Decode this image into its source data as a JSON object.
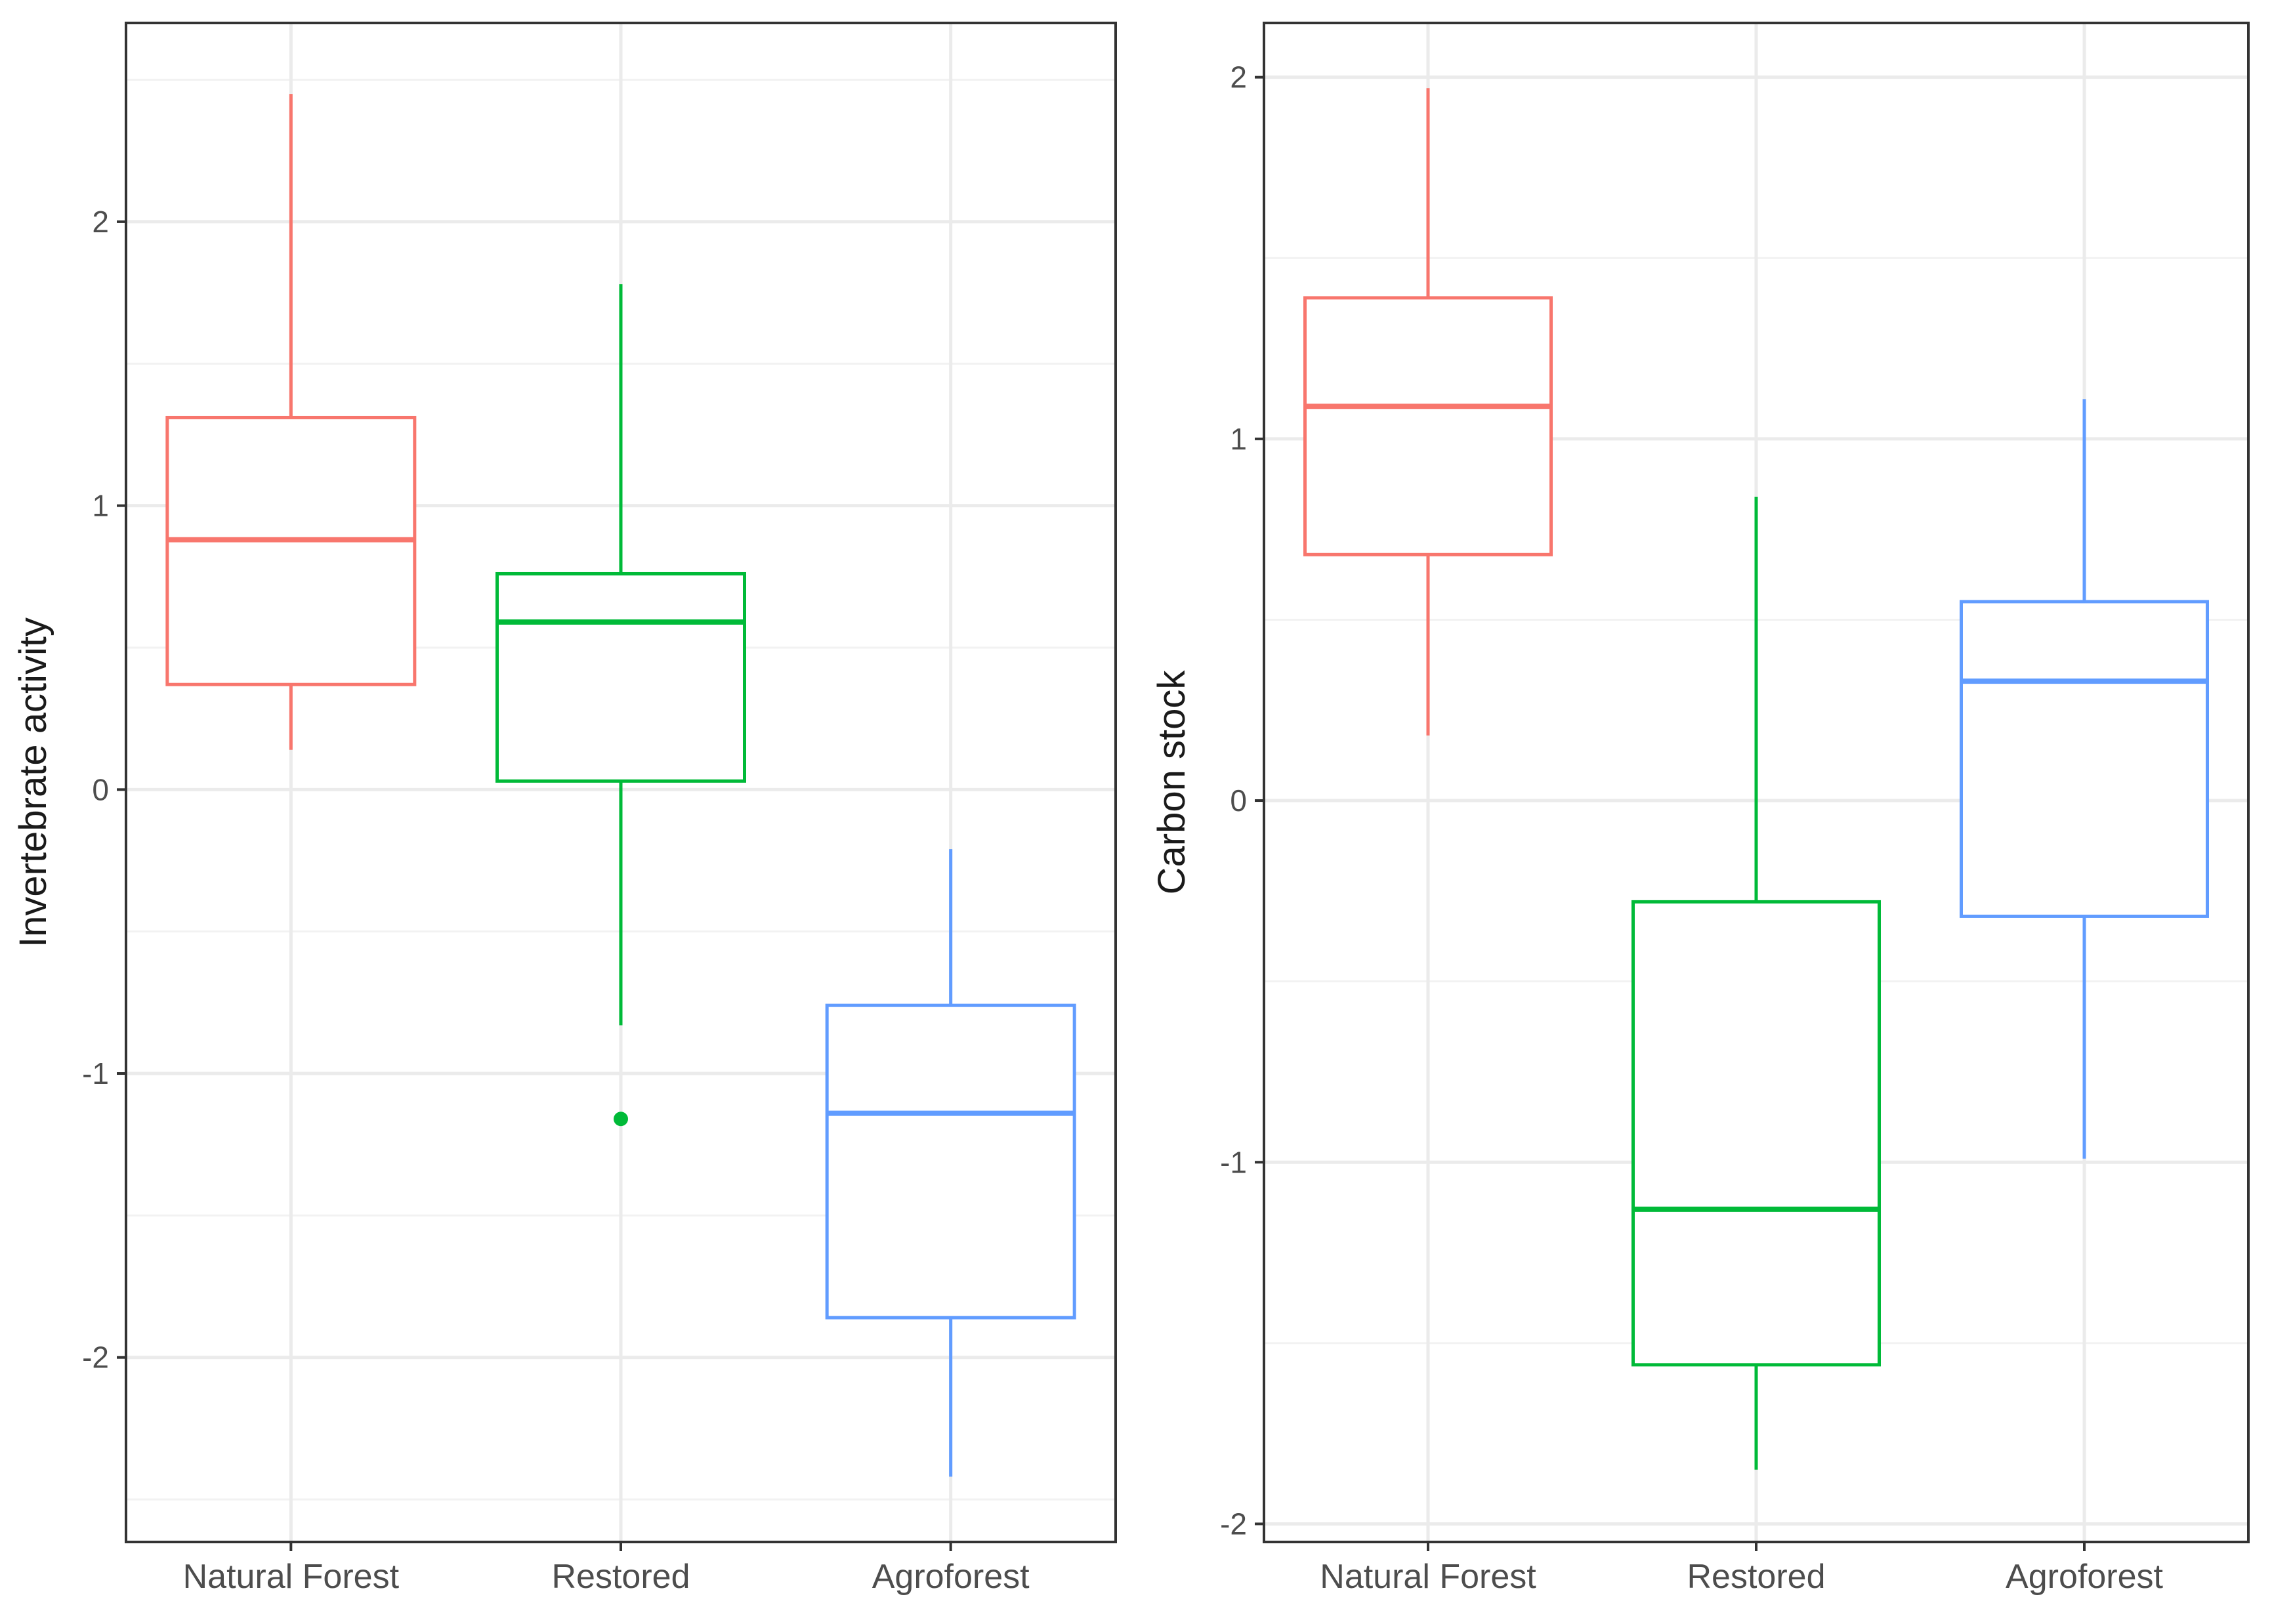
{
  "chart_data": [
    {
      "type": "boxplot",
      "title": "",
      "xlabel": "",
      "ylabel": "Invertebrate activity",
      "ylim": [
        -2.65,
        2.7
      ],
      "yticks": [
        -2,
        -1,
        0,
        1,
        2
      ],
      "categories": [
        "Natural Forest",
        "Restored",
        "Agroforest"
      ],
      "colors": [
        "#F8766D",
        "#00BA38",
        "#619CFF"
      ],
      "boxes": [
        {
          "category": "Natural Forest",
          "whisker_low": 0.14,
          "q1": 0.37,
          "median": 0.88,
          "q3": 1.31,
          "whisker_high": 2.45,
          "outliers": []
        },
        {
          "category": "Restored",
          "whisker_low": -0.83,
          "q1": 0.03,
          "median": 0.59,
          "q3": 0.76,
          "whisker_high": 1.78,
          "outliers": [
            -1.16
          ]
        },
        {
          "category": "Agroforest",
          "whisker_low": -2.42,
          "q1": -1.86,
          "median": -1.14,
          "q3": -0.76,
          "whisker_high": -0.21,
          "outliers": []
        }
      ],
      "grid": true
    },
    {
      "type": "boxplot",
      "title": "",
      "xlabel": "",
      "ylabel": "Carbon stock",
      "ylim": [
        -2.05,
        2.15
      ],
      "yticks": [
        -2,
        -1,
        0,
        1,
        2
      ],
      "categories": [
        "Natural Forest",
        "Restored",
        "Agroforest"
      ],
      "colors": [
        "#F8766D",
        "#00BA38",
        "#619CFF"
      ],
      "boxes": [
        {
          "category": "Natural Forest",
          "whisker_low": 0.18,
          "q1": 0.68,
          "median": 1.09,
          "q3": 1.39,
          "whisker_high": 1.97,
          "outliers": []
        },
        {
          "category": "Restored",
          "whisker_low": -1.85,
          "q1": -1.56,
          "median": -1.13,
          "q3": -0.28,
          "whisker_high": 0.84,
          "outliers": []
        },
        {
          "category": "Agroforest",
          "whisker_low": -0.99,
          "q1": -0.32,
          "median": 0.33,
          "q3": 0.55,
          "whisker_high": 1.11,
          "outliers": []
        }
      ],
      "grid": true
    }
  ]
}
